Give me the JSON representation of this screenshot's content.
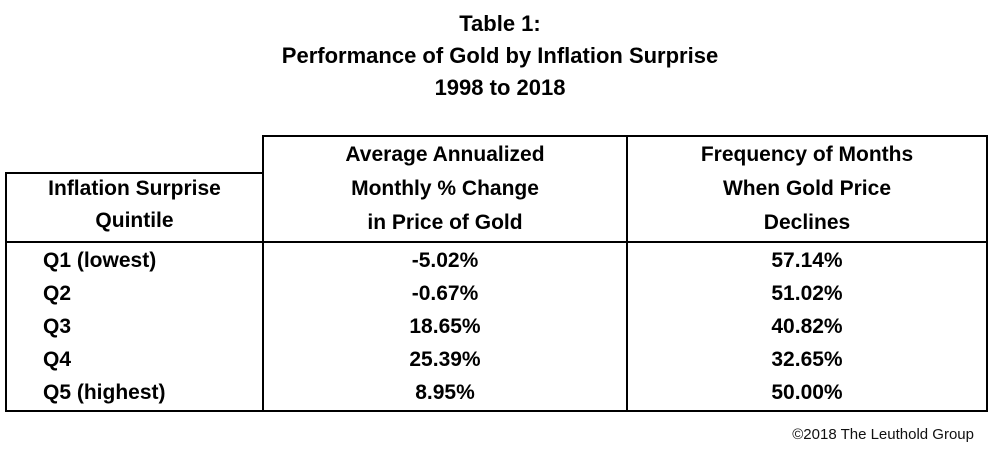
{
  "title": {
    "line1": "Table 1:",
    "line2": "Performance of Gold by Inflation Surprise",
    "line3": "1998 to 2018"
  },
  "table": {
    "headers": {
      "col1": [
        "Inflation Surprise",
        "Quintile"
      ],
      "col2": [
        "Average Annualized",
        "Monthly % Change",
        "in Price of Gold"
      ],
      "col3": [
        "Frequency of Months",
        "When Gold Price",
        "Declines"
      ]
    },
    "rows": [
      {
        "quintile": "Q1 (lowest)",
        "avg_change": "-5.02%",
        "freq_declines": "57.14%"
      },
      {
        "quintile": "Q2",
        "avg_change": "-0.67%",
        "freq_declines": "51.02%"
      },
      {
        "quintile": "Q3",
        "avg_change": "18.65%",
        "freq_declines": "40.82%"
      },
      {
        "quintile": "Q4",
        "avg_change": "25.39%",
        "freq_declines": "32.65%"
      },
      {
        "quintile": "Q5 (highest)",
        "avg_change": "8.95%",
        "freq_declines": "50.00%"
      }
    ]
  },
  "footer": "©2018 The Leuthold Group"
}
